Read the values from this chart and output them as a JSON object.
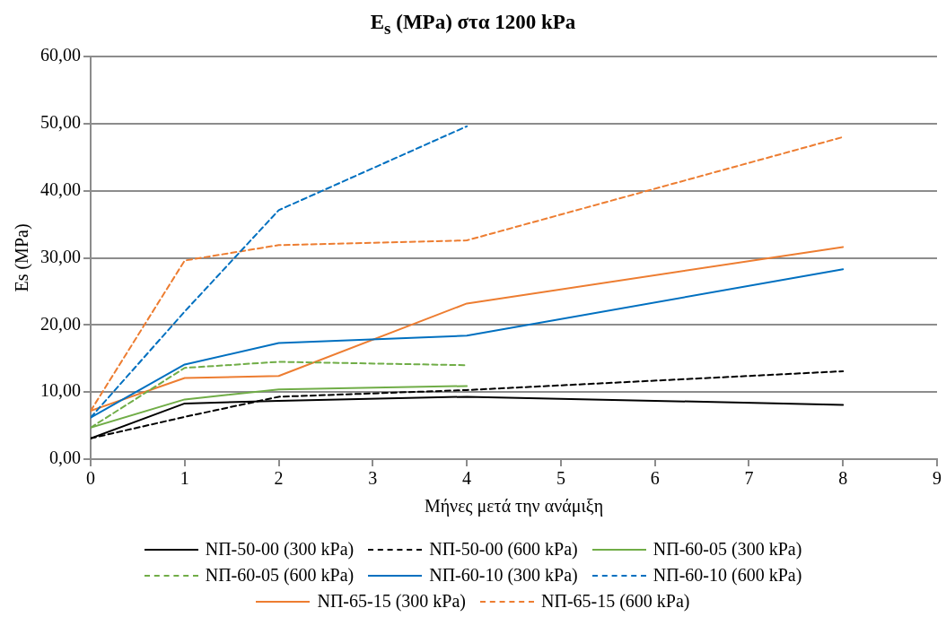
{
  "chart_data": {
    "type": "line",
    "title": "E$_{s}$ (MPa) στα 1200 kPa",
    "xlabel": "Μήνες μετά την ανάμιξη",
    "ylabel": "Es (MPa)",
    "xlim": [
      0,
      9
    ],
    "xticks": [
      0,
      1,
      2,
      3,
      4,
      5,
      6,
      7,
      8,
      9
    ],
    "ylim": [
      0,
      60
    ],
    "yticks": [
      {
        "value": 0,
        "label": "0,00"
      },
      {
        "value": 10,
        "label": "10,00"
      },
      {
        "value": 20,
        "label": "20,00"
      },
      {
        "value": 30,
        "label": "30,00"
      },
      {
        "value": 40,
        "label": "40,00"
      },
      {
        "value": 50,
        "label": "50,00"
      },
      {
        "value": 60,
        "label": "60,00"
      }
    ],
    "grid": "y",
    "legend": "bottom",
    "marker": "none",
    "series": [
      {
        "name": "ΝΠ-50-00 (300 kPa)",
        "color": "#000000",
        "line_style": "solid",
        "x": [
          0,
          1,
          2,
          4,
          8
        ],
        "values": [
          3.1,
          8.3,
          8.7,
          9.3,
          8.1
        ]
      },
      {
        "name": "ΝΠ-50-00 (600 kPa)",
        "color": "#000000",
        "line_style": "dashed",
        "x": [
          0,
          1,
          2,
          4,
          8
        ],
        "values": [
          3.1,
          6.3,
          9.3,
          10.3,
          13.1
        ]
      },
      {
        "name": "ΝΠ-60-05 (300 kPa)",
        "color": "#70ad47",
        "line_style": "solid",
        "x": [
          0,
          1,
          2,
          4
        ],
        "values": [
          4.7,
          8.9,
          10.4,
          10.9
        ]
      },
      {
        "name": "ΝΠ-60-05 (600 kPa)",
        "color": "#70ad47",
        "line_style": "dashed",
        "x": [
          0,
          1,
          2,
          4
        ],
        "values": [
          4.7,
          13.6,
          14.5,
          14.0
        ]
      },
      {
        "name": "ΝΠ-60-10 (300 kPa)",
        "color": "#0070c0",
        "line_style": "solid",
        "x": [
          0,
          1,
          2,
          4,
          8
        ],
        "values": [
          6.2,
          14.1,
          17.3,
          18.4,
          28.3
        ]
      },
      {
        "name": "ΝΠ-60-10 (600 kPa)",
        "color": "#0070c0",
        "line_style": "dashed",
        "x": [
          0,
          1,
          2,
          4
        ],
        "values": [
          6.2,
          22.0,
          37.1,
          49.6
        ]
      },
      {
        "name": "ΝΠ-65-15 (300 kPa)",
        "color": "#ed7d31",
        "line_style": "solid",
        "x": [
          0,
          1,
          2,
          4,
          8
        ],
        "values": [
          7.2,
          12.1,
          12.4,
          23.2,
          31.6
        ]
      },
      {
        "name": "ΝΠ-65-15 (600 kPa)",
        "color": "#ed7d31",
        "line_style": "dashed",
        "x": [
          0,
          1,
          2,
          4,
          8
        ],
        "values": [
          7.2,
          29.6,
          31.9,
          32.6,
          48.0
        ]
      }
    ]
  }
}
